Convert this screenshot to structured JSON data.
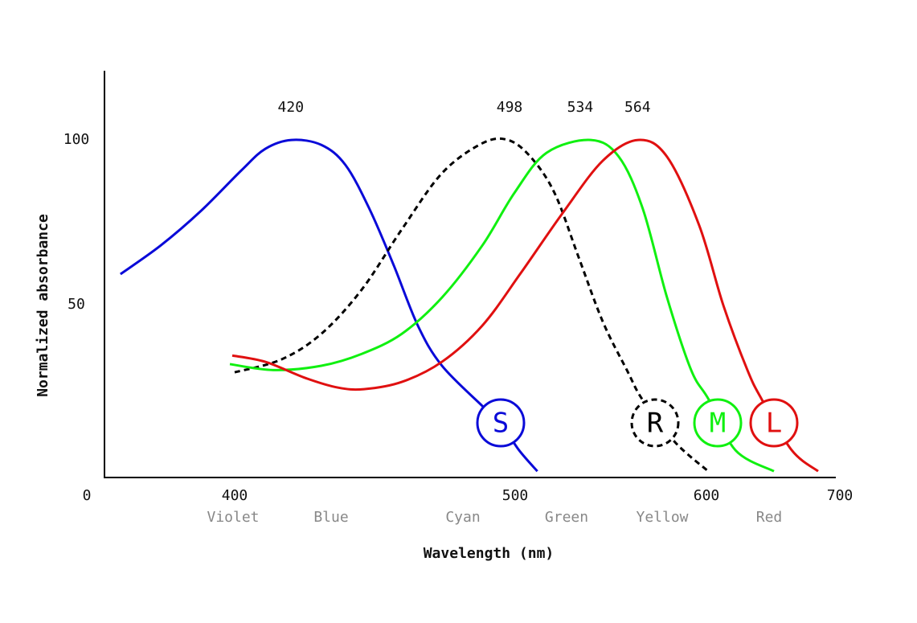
{
  "chart_data": {
    "type": "line",
    "xlabel": "Wavelength (nm)",
    "ylabel": "Normalized absorbance",
    "xticks": [
      0,
      400,
      500,
      600,
      700
    ],
    "ylim": [
      -2.4,
      121
    ],
    "yticks": [
      50,
      100
    ],
    "bands": [
      "Violet",
      "Blue",
      "Cyan",
      "Green",
      "Yellow",
      "Red"
    ],
    "series": [
      {
        "name": "S",
        "color": "#0a0ad8",
        "dashed": false,
        "peak": 420,
        "x": [
          91,
          200,
          309,
          402.3,
          410.9,
          420.3,
          430.9,
          439.5,
          448.1,
          456.7,
          465.3,
          473.9,
          488.3,
          494.8,
          502,
          511.6
        ],
        "values": [
          59.3,
          68,
          78.5,
          90.7,
          97.3,
          100,
          98.5,
          92.4,
          79,
          62,
          43.7,
          31.5,
          19.3,
          14.1,
          5.9,
          -0.5
        ]
      },
      {
        "name": "R",
        "color": "#000000",
        "dashed": true,
        "peak": 498,
        "x": [
          400,
          416.6,
          430.9,
          445.3,
          459.6,
          474,
          488.3,
          497.4,
          508,
          520.6,
          533.2,
          545.8,
          558.4,
          566.8,
          583.6,
          600.4
        ],
        "values": [
          29.5,
          33.4,
          41.2,
          54.6,
          72.9,
          90,
          99,
          100,
          94.9,
          83.9,
          64.4,
          44.9,
          30.2,
          21,
          8.3,
          -0.2
        ]
      },
      {
        "name": "M",
        "color": "#10f010",
        "dashed": false,
        "peak": 534,
        "x": [
          387,
          413.8,
          430.9,
          445.3,
          459.6,
          473.9,
          488.3,
          499.7,
          516.4,
          539.5,
          554.2,
          566.8,
          579.4,
          592,
          601.8,
          621.7,
          650.6
        ],
        "values": [
          32,
          30.2,
          31.5,
          35.1,
          41.2,
          52.2,
          68,
          83.9,
          96.1,
          100,
          94.9,
          79,
          52.2,
          30.2,
          21.2,
          5.9,
          -0.5
        ]
      },
      {
        "name": "L",
        "color": "#e01010",
        "dashed": false,
        "peak": 564,
        "x": [
          393.5,
          410.9,
          425.2,
          436.7,
          446.1,
          459.6,
          473.9,
          488.3,
          502.8,
          524.8,
          545.8,
          564.3,
          579.4,
          596.2,
          612.7,
          630.7,
          641.6,
          663.9,
          683.7
        ],
        "values": [
          34.6,
          32.7,
          27.8,
          24.9,
          24.4,
          26.6,
          32.7,
          43.7,
          59.5,
          77.8,
          93.7,
          100,
          94.9,
          74.1,
          49.8,
          30.2,
          21.2,
          5.9,
          -0.5
        ]
      }
    ]
  }
}
